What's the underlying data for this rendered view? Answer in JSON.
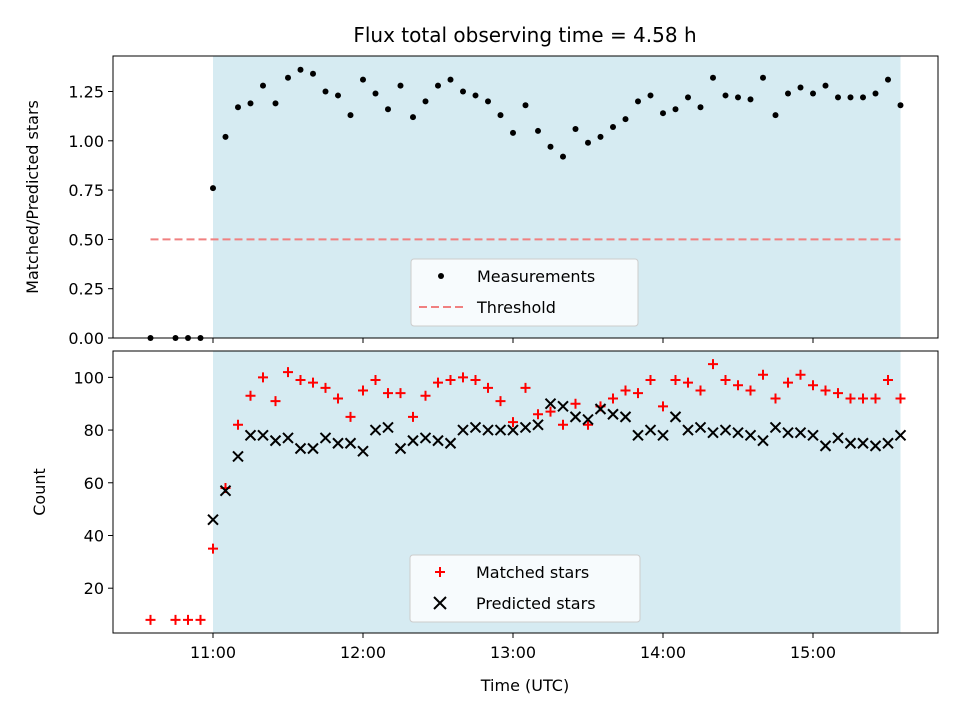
{
  "chart_data": [
    {
      "type": "scatter",
      "title": "Flux total observing time = 4.58 h",
      "xlabel": "",
      "ylabel": "Matched/Predicted stars",
      "xlim": [
        "10:20",
        "15:50"
      ],
      "ylim": [
        0.0,
        1.43
      ],
      "yticks": [
        0.0,
        0.25,
        0.5,
        0.75,
        1.0,
        1.25
      ],
      "ytick_labels": [
        "0.00",
        "0.25",
        "0.50",
        "0.75",
        "1.00",
        "1.25"
      ],
      "shaded_span": [
        "11:00",
        "15:35"
      ],
      "shade_color": "#add8e6",
      "legend_location": "lower center",
      "series": [
        {
          "name": "Measurements",
          "marker": "dot",
          "color": "#000000",
          "points": [
            [
              "10:35",
              0.0
            ],
            [
              "10:45",
              0.0
            ],
            [
              "10:50",
              0.0
            ],
            [
              "10:55",
              0.0
            ],
            [
              "11:00",
              0.76
            ],
            [
              "11:05",
              1.02
            ],
            [
              "11:10",
              1.17
            ],
            [
              "11:15",
              1.19
            ],
            [
              "11:20",
              1.28
            ],
            [
              "11:25",
              1.19
            ],
            [
              "11:30",
              1.32
            ],
            [
              "11:35",
              1.36
            ],
            [
              "11:40",
              1.34
            ],
            [
              "11:45",
              1.25
            ],
            [
              "11:50",
              1.23
            ],
            [
              "11:55",
              1.13
            ],
            [
              "12:00",
              1.31
            ],
            [
              "12:05",
              1.24
            ],
            [
              "12:10",
              1.16
            ],
            [
              "12:15",
              1.28
            ],
            [
              "12:20",
              1.12
            ],
            [
              "12:25",
              1.2
            ],
            [
              "12:30",
              1.28
            ],
            [
              "12:35",
              1.31
            ],
            [
              "12:40",
              1.25
            ],
            [
              "12:45",
              1.23
            ],
            [
              "12:50",
              1.2
            ],
            [
              "12:55",
              1.13
            ],
            [
              "13:00",
              1.04
            ],
            [
              "13:05",
              1.18
            ],
            [
              "13:10",
              1.05
            ],
            [
              "13:15",
              0.97
            ],
            [
              "13:20",
              0.92
            ],
            [
              "13:25",
              1.06
            ],
            [
              "13:30",
              0.99
            ],
            [
              "13:35",
              1.02
            ],
            [
              "13:40",
              1.07
            ],
            [
              "13:45",
              1.11
            ],
            [
              "13:50",
              1.2
            ],
            [
              "13:55",
              1.23
            ],
            [
              "14:00",
              1.14
            ],
            [
              "14:05",
              1.16
            ],
            [
              "14:10",
              1.22
            ],
            [
              "14:15",
              1.17
            ],
            [
              "14:20",
              1.32
            ],
            [
              "14:25",
              1.23
            ],
            [
              "14:30",
              1.22
            ],
            [
              "14:35",
              1.21
            ],
            [
              "14:40",
              1.32
            ],
            [
              "14:45",
              1.13
            ],
            [
              "14:50",
              1.24
            ],
            [
              "14:55",
              1.27
            ],
            [
              "15:00",
              1.24
            ],
            [
              "15:05",
              1.28
            ],
            [
              "15:10",
              1.22
            ],
            [
              "15:15",
              1.22
            ],
            [
              "15:20",
              1.22
            ],
            [
              "15:25",
              1.24
            ],
            [
              "15:30",
              1.31
            ],
            [
              "15:35",
              1.18
            ]
          ]
        },
        {
          "name": "Threshold",
          "marker": "dashed-line",
          "color": "#f08080",
          "points": [
            [
              "10:35",
              0.5
            ],
            [
              "15:35",
              0.5
            ]
          ]
        }
      ]
    },
    {
      "type": "scatter",
      "title": "",
      "xlabel": "Time (UTC)",
      "ylabel": "Count",
      "xlim": [
        "10:20",
        "15:50"
      ],
      "ylim": [
        3,
        110
      ],
      "xticks": [
        "11:00",
        "12:00",
        "13:00",
        "14:00",
        "15:00"
      ],
      "yticks": [
        20,
        40,
        60,
        80,
        100
      ],
      "ytick_labels": [
        "20",
        "40",
        "60",
        "80",
        "100"
      ],
      "shaded_span": [
        "11:00",
        "15:35"
      ],
      "shade_color": "#add8e6",
      "legend_location": "lower center",
      "series": [
        {
          "name": "Matched stars",
          "marker": "plus",
          "color": "#ff0000",
          "points": [
            [
              "10:35",
              8
            ],
            [
              "10:45",
              8
            ],
            [
              "10:50",
              8
            ],
            [
              "10:55",
              8
            ],
            [
              "11:00",
              35
            ],
            [
              "11:05",
              58
            ],
            [
              "11:10",
              82
            ],
            [
              "11:15",
              93
            ],
            [
              "11:20",
              100
            ],
            [
              "11:25",
              91
            ],
            [
              "11:30",
              102
            ],
            [
              "11:35",
              99
            ],
            [
              "11:40",
              98
            ],
            [
              "11:45",
              96
            ],
            [
              "11:50",
              92
            ],
            [
              "11:55",
              85
            ],
            [
              "12:00",
              95
            ],
            [
              "12:05",
              99
            ],
            [
              "12:10",
              94
            ],
            [
              "12:15",
              94
            ],
            [
              "12:20",
              85
            ],
            [
              "12:25",
              93
            ],
            [
              "12:30",
              98
            ],
            [
              "12:35",
              99
            ],
            [
              "12:40",
              100
            ],
            [
              "12:45",
              99
            ],
            [
              "12:50",
              96
            ],
            [
              "12:55",
              91
            ],
            [
              "13:00",
              83
            ],
            [
              "13:05",
              96
            ],
            [
              "13:10",
              86
            ],
            [
              "13:15",
              87
            ],
            [
              "13:20",
              82
            ],
            [
              "13:25",
              90
            ],
            [
              "13:30",
              82
            ],
            [
              "13:35",
              89
            ],
            [
              "13:40",
              92
            ],
            [
              "13:45",
              95
            ],
            [
              "13:50",
              94
            ],
            [
              "13:55",
              99
            ],
            [
              "14:00",
              89
            ],
            [
              "14:05",
              99
            ],
            [
              "14:10",
              98
            ],
            [
              "14:15",
              95
            ],
            [
              "14:20",
              105
            ],
            [
              "14:25",
              99
            ],
            [
              "14:30",
              97
            ],
            [
              "14:35",
              95
            ],
            [
              "14:40",
              101
            ],
            [
              "14:45",
              92
            ],
            [
              "14:50",
              98
            ],
            [
              "14:55",
              101
            ],
            [
              "15:00",
              97
            ],
            [
              "15:05",
              95
            ],
            [
              "15:10",
              94
            ],
            [
              "15:15",
              92
            ],
            [
              "15:20",
              92
            ],
            [
              "15:25",
              92
            ],
            [
              "15:30",
              99
            ],
            [
              "15:35",
              92
            ]
          ]
        },
        {
          "name": "Predicted stars",
          "marker": "x",
          "color": "#000000",
          "points": [
            [
              "11:00",
              46
            ],
            [
              "11:05",
              57
            ],
            [
              "11:10",
              70
            ],
            [
              "11:15",
              78
            ],
            [
              "11:20",
              78
            ],
            [
              "11:25",
              76
            ],
            [
              "11:30",
              77
            ],
            [
              "11:35",
              73
            ],
            [
              "11:40",
              73
            ],
            [
              "11:45",
              77
            ],
            [
              "11:50",
              75
            ],
            [
              "11:55",
              75
            ],
            [
              "12:00",
              72
            ],
            [
              "12:05",
              80
            ],
            [
              "12:10",
              81
            ],
            [
              "12:15",
              73
            ],
            [
              "12:20",
              76
            ],
            [
              "12:25",
              77
            ],
            [
              "12:30",
              76
            ],
            [
              "12:35",
              75
            ],
            [
              "12:40",
              80
            ],
            [
              "12:45",
              81
            ],
            [
              "12:50",
              80
            ],
            [
              "12:55",
              80
            ],
            [
              "13:00",
              80
            ],
            [
              "13:05",
              81
            ],
            [
              "13:10",
              82
            ],
            [
              "13:15",
              90
            ],
            [
              "13:20",
              89
            ],
            [
              "13:25",
              85
            ],
            [
              "13:30",
              84
            ],
            [
              "13:35",
              88
            ],
            [
              "13:40",
              86
            ],
            [
              "13:45",
              85
            ],
            [
              "13:50",
              78
            ],
            [
              "13:55",
              80
            ],
            [
              "14:00",
              78
            ],
            [
              "14:05",
              85
            ],
            [
              "14:10",
              80
            ],
            [
              "14:15",
              81
            ],
            [
              "14:20",
              79
            ],
            [
              "14:25",
              80
            ],
            [
              "14:30",
              79
            ],
            [
              "14:35",
              78
            ],
            [
              "14:40",
              76
            ],
            [
              "14:45",
              81
            ],
            [
              "14:50",
              79
            ],
            [
              "14:55",
              79
            ],
            [
              "15:00",
              78
            ],
            [
              "15:05",
              74
            ],
            [
              "15:10",
              77
            ],
            [
              "15:15",
              75
            ],
            [
              "15:20",
              75
            ],
            [
              "15:25",
              74
            ],
            [
              "15:30",
              75
            ],
            [
              "15:35",
              78
            ]
          ]
        }
      ]
    }
  ]
}
